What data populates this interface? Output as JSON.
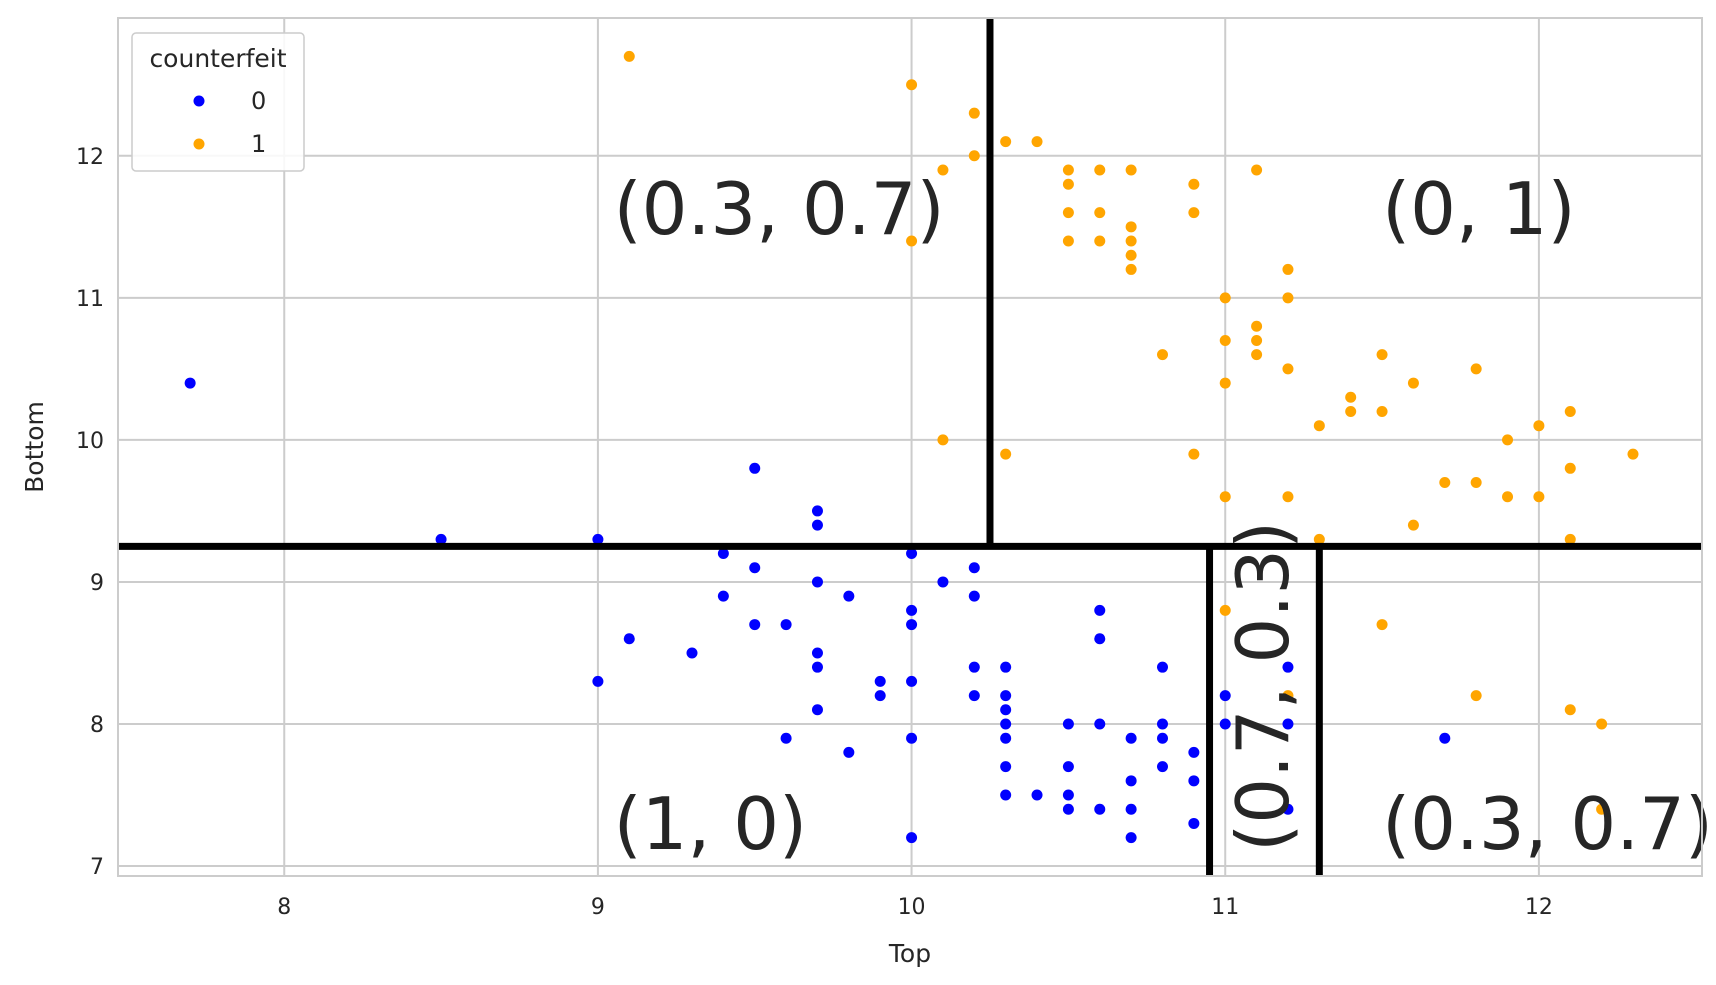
{
  "chart_data": {
    "type": "scatter",
    "xlabel": "Top",
    "ylabel": "Bottom",
    "xlim": [
      7.47,
      12.52
    ],
    "ylim": [
      6.93,
      12.97
    ],
    "x_ticks": [
      8,
      9,
      10,
      11,
      12
    ],
    "y_ticks": [
      7,
      8,
      9,
      10,
      11,
      12
    ],
    "grid": true,
    "legend": {
      "title": "counterfeit",
      "placement": "top-left",
      "entries": [
        {
          "label": "0",
          "color": "#0000ff"
        },
        {
          "label": "1",
          "color": "#ffa500"
        }
      ]
    },
    "series": [
      {
        "name": "0",
        "color": "#0000ff",
        "points": [
          [
            7.7,
            10.4
          ],
          [
            8.5,
            9.3
          ],
          [
            9.0,
            9.3
          ],
          [
            9.0,
            8.3
          ],
          [
            9.1,
            8.6
          ],
          [
            9.3,
            8.5
          ],
          [
            9.4,
            9.2
          ],
          [
            9.4,
            8.9
          ],
          [
            9.5,
            9.8
          ],
          [
            9.5,
            9.1
          ],
          [
            9.5,
            8.7
          ],
          [
            9.6,
            8.7
          ],
          [
            9.6,
            7.9
          ],
          [
            9.7,
            9.5
          ],
          [
            9.7,
            9.4
          ],
          [
            9.7,
            9.0
          ],
          [
            9.7,
            8.5
          ],
          [
            9.7,
            8.4
          ],
          [
            9.7,
            8.1
          ],
          [
            9.8,
            8.9
          ],
          [
            9.8,
            7.8
          ],
          [
            9.9,
            8.3
          ],
          [
            9.9,
            8.2
          ],
          [
            10.0,
            9.2
          ],
          [
            10.0,
            8.8
          ],
          [
            10.0,
            8.7
          ],
          [
            10.0,
            8.3
          ],
          [
            10.0,
            7.9
          ],
          [
            10.0,
            7.2
          ],
          [
            10.1,
            9.0
          ],
          [
            10.2,
            9.1
          ],
          [
            10.2,
            8.9
          ],
          [
            10.2,
            8.4
          ],
          [
            10.2,
            8.2
          ],
          [
            10.3,
            8.4
          ],
          [
            10.3,
            8.2
          ],
          [
            10.3,
            8.1
          ],
          [
            10.3,
            8.0
          ],
          [
            10.3,
            7.9
          ],
          [
            10.3,
            7.7
          ],
          [
            10.3,
            7.5
          ],
          [
            10.4,
            7.5
          ],
          [
            10.5,
            8.0
          ],
          [
            10.5,
            7.7
          ],
          [
            10.5,
            7.5
          ],
          [
            10.5,
            7.4
          ],
          [
            10.6,
            8.8
          ],
          [
            10.6,
            8.6
          ],
          [
            10.6,
            8.0
          ],
          [
            10.6,
            7.4
          ],
          [
            10.7,
            7.9
          ],
          [
            10.7,
            7.6
          ],
          [
            10.7,
            7.4
          ],
          [
            10.7,
            7.2
          ],
          [
            10.8,
            8.4
          ],
          [
            10.8,
            8.0
          ],
          [
            10.8,
            7.9
          ],
          [
            10.8,
            7.7
          ],
          [
            10.9,
            7.8
          ],
          [
            10.9,
            7.6
          ],
          [
            10.9,
            7.3
          ],
          [
            11.0,
            8.2
          ],
          [
            11.0,
            8.0
          ],
          [
            11.2,
            8.4
          ],
          [
            11.2,
            8.0
          ],
          [
            11.2,
            7.4
          ],
          [
            11.7,
            7.9
          ]
        ]
      },
      {
        "name": "1",
        "color": "#ffa500",
        "points": [
          [
            9.1,
            12.7
          ],
          [
            10.0,
            12.5
          ],
          [
            10.0,
            11.4
          ],
          [
            10.1,
            11.9
          ],
          [
            10.1,
            10.0
          ],
          [
            10.2,
            12.3
          ],
          [
            10.2,
            12.0
          ],
          [
            10.3,
            12.1
          ],
          [
            10.3,
            9.9
          ],
          [
            10.4,
            12.1
          ],
          [
            10.5,
            11.9
          ],
          [
            10.5,
            11.8
          ],
          [
            10.5,
            11.6
          ],
          [
            10.5,
            11.4
          ],
          [
            10.6,
            11.9
          ],
          [
            10.6,
            11.6
          ],
          [
            10.6,
            11.4
          ],
          [
            10.7,
            11.9
          ],
          [
            10.7,
            11.5
          ],
          [
            10.7,
            11.4
          ],
          [
            10.7,
            11.3
          ],
          [
            10.7,
            11.2
          ],
          [
            10.8,
            10.6
          ],
          [
            10.9,
            11.8
          ],
          [
            10.9,
            11.6
          ],
          [
            10.9,
            9.9
          ],
          [
            11.0,
            11.0
          ],
          [
            11.0,
            10.7
          ],
          [
            11.0,
            10.4
          ],
          [
            11.0,
            9.6
          ],
          [
            11.0,
            8.8
          ],
          [
            11.1,
            11.9
          ],
          [
            11.1,
            10.8
          ],
          [
            11.1,
            10.7
          ],
          [
            11.1,
            10.6
          ],
          [
            11.2,
            11.2
          ],
          [
            11.2,
            11.0
          ],
          [
            11.2,
            10.5
          ],
          [
            11.2,
            9.6
          ],
          [
            11.2,
            8.2
          ],
          [
            11.3,
            10.1
          ],
          [
            11.3,
            9.3
          ],
          [
            11.4,
            10.3
          ],
          [
            11.4,
            10.2
          ],
          [
            11.5,
            10.6
          ],
          [
            11.5,
            10.2
          ],
          [
            11.5,
            8.7
          ],
          [
            11.6,
            10.4
          ],
          [
            11.6,
            9.4
          ],
          [
            11.7,
            9.7
          ],
          [
            11.8,
            10.5
          ],
          [
            11.8,
            9.7
          ],
          [
            11.8,
            8.2
          ],
          [
            11.9,
            10.0
          ],
          [
            11.9,
            9.6
          ],
          [
            12.0,
            10.1
          ],
          [
            12.0,
            9.6
          ],
          [
            12.1,
            10.2
          ],
          [
            12.1,
            9.8
          ],
          [
            12.1,
            9.3
          ],
          [
            12.1,
            8.1
          ],
          [
            12.2,
            8.0
          ],
          [
            12.2,
            7.4
          ],
          [
            12.3,
            9.9
          ]
        ]
      }
    ],
    "splits": [
      {
        "orientation": "horizontal",
        "y": 9.25,
        "x_from": 7.47,
        "x_to": 12.52
      },
      {
        "orientation": "vertical",
        "x": 10.25,
        "y_from": 9.25,
        "y_to": 12.97
      },
      {
        "orientation": "vertical",
        "x": 10.95,
        "y_from": 6.93,
        "y_to": 9.25
      },
      {
        "orientation": "vertical",
        "x": 11.3,
        "y_from": 6.93,
        "y_to": 9.25
      }
    ],
    "annotations": [
      {
        "text": "(0.3, 0.7)",
        "x": 9.05,
        "y": 11.45,
        "rotation": 0
      },
      {
        "text": "(0, 1)",
        "x": 11.5,
        "y": 11.45,
        "rotation": 0
      },
      {
        "text": "(1, 0)",
        "x": 9.05,
        "y": 7.12,
        "rotation": 0
      },
      {
        "text": "(0.3, 0.7)",
        "x": 11.5,
        "y": 7.12,
        "rotation": 0
      },
      {
        "text": "(0.7, 0.3)",
        "x": 11.2,
        "y": 7.1,
        "rotation": -90
      }
    ]
  }
}
